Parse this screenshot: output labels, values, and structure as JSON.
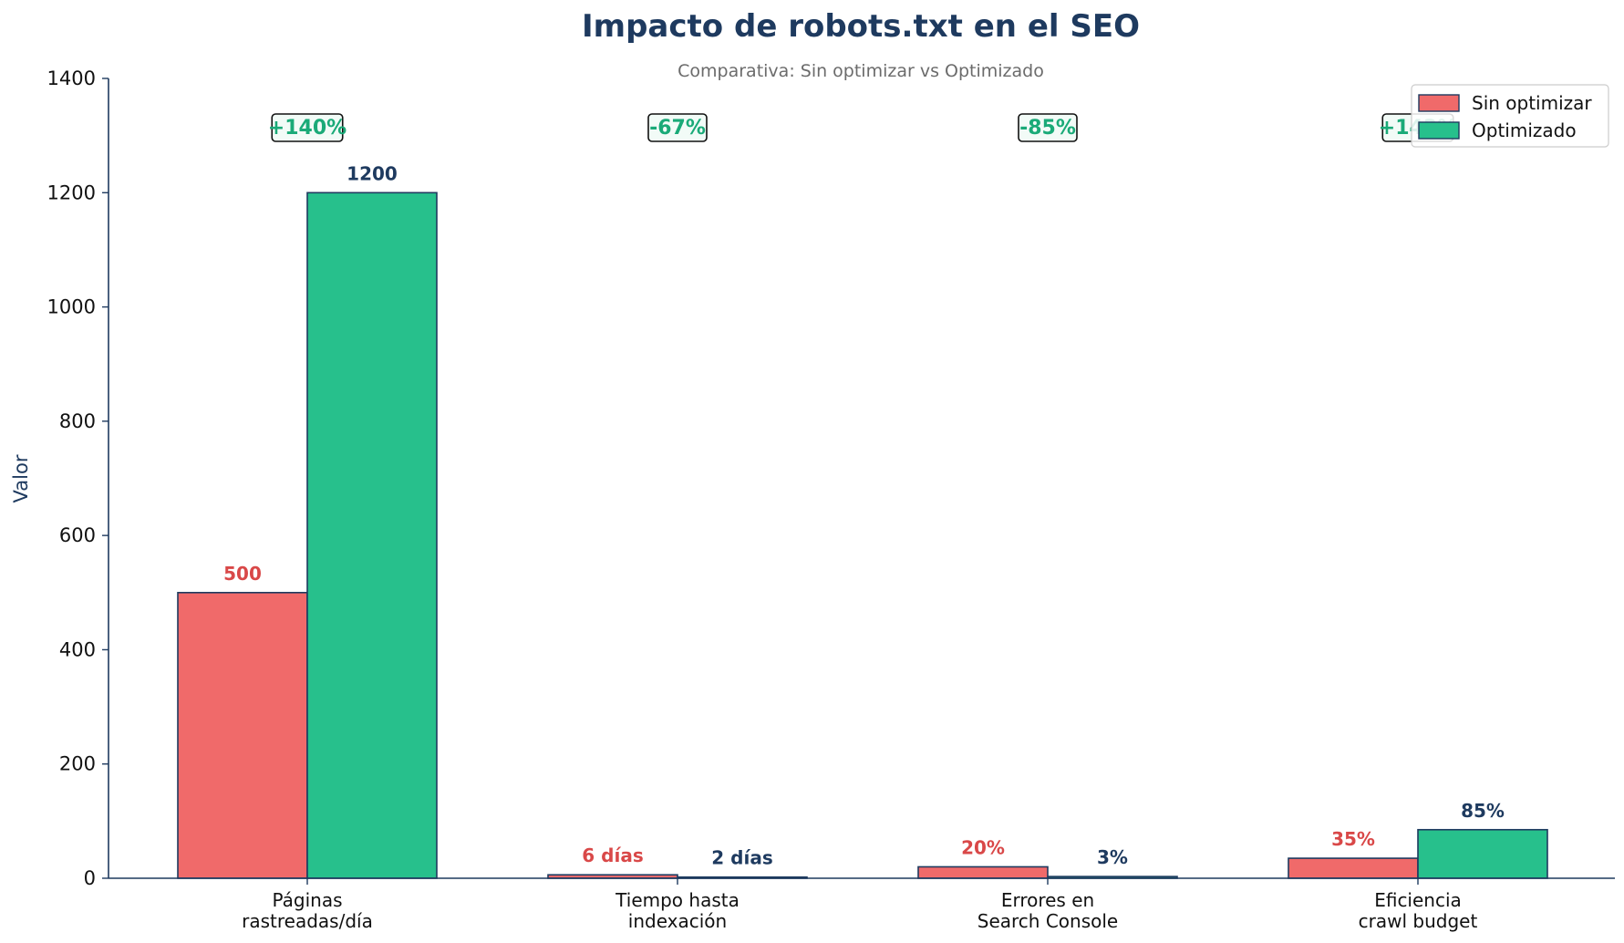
{
  "chart_data": {
    "type": "bar",
    "title": "Impacto de robots.txt en el SEO",
    "subtitle": "Comparativa: Sin optimizar vs Optimizado",
    "xlabel": "",
    "ylabel": "Valor",
    "ylim": [
      0,
      1400
    ],
    "yticks": [
      0,
      200,
      400,
      600,
      800,
      1000,
      1200,
      1400
    ],
    "categories": [
      [
        "Páginas",
        "rastreadas/día"
      ],
      [
        "Tiempo hasta",
        "indexación"
      ],
      [
        "Errores en",
        "Search Console"
      ],
      [
        "Eficiencia",
        "crawl budget"
      ]
    ],
    "series": [
      {
        "name": "Sin optimizar",
        "color": "#f06a6a",
        "label_color": "#d94848",
        "values": [
          500,
          6,
          20,
          35
        ],
        "labels": [
          "500",
          "6 días",
          "20%",
          "35%"
        ]
      },
      {
        "name": "Optimizado",
        "color": "#27c08c",
        "label_color": "#1e3a5f",
        "values": [
          1200,
          2,
          3,
          85
        ],
        "labels": [
          "1200",
          "2 días",
          "3%",
          "85%"
        ]
      }
    ],
    "changes": [
      "+140%",
      "-67%",
      "-85%",
      "+143%"
    ],
    "change_color": "#1aaa78",
    "bar_edge_color": "#1e3a5f",
    "legend_position": "top-right",
    "grid": false
  }
}
